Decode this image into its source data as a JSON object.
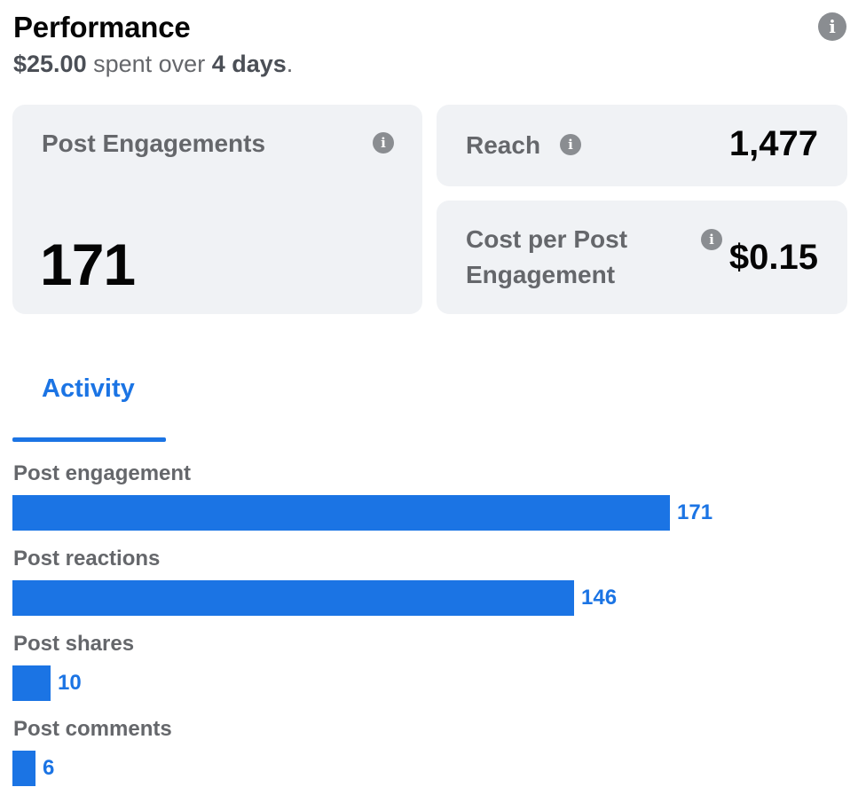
{
  "header": {
    "title": "Performance",
    "info_icon": "info-icon",
    "spent_amount": "$25.00",
    "spent_text": "spent over",
    "duration": "4 days",
    "period": "."
  },
  "cards": {
    "post_engagements": {
      "label": "Post Engagements",
      "value": "171"
    },
    "reach": {
      "label": "Reach",
      "value": "1,477"
    },
    "cost_per_engagement": {
      "label": "Cost per Post Engagement",
      "value": "$0.15"
    }
  },
  "tabs": [
    {
      "label": "Activity",
      "active": true
    }
  ],
  "colors": {
    "accent": "#1b74e4",
    "card_bg": "#f0f2f5",
    "muted_text": "#65676b",
    "icon_gray": "#8a8d91"
  },
  "chart_data": {
    "type": "bar",
    "orientation": "horizontal",
    "categories": [
      "Post engagement",
      "Post reactions",
      "Post shares",
      "Post comments"
    ],
    "values": [
      171,
      146,
      10,
      6
    ],
    "value_labels": [
      "171",
      "146",
      "10",
      "6"
    ],
    "xlim": [
      0,
      171
    ],
    "grid": false
  }
}
